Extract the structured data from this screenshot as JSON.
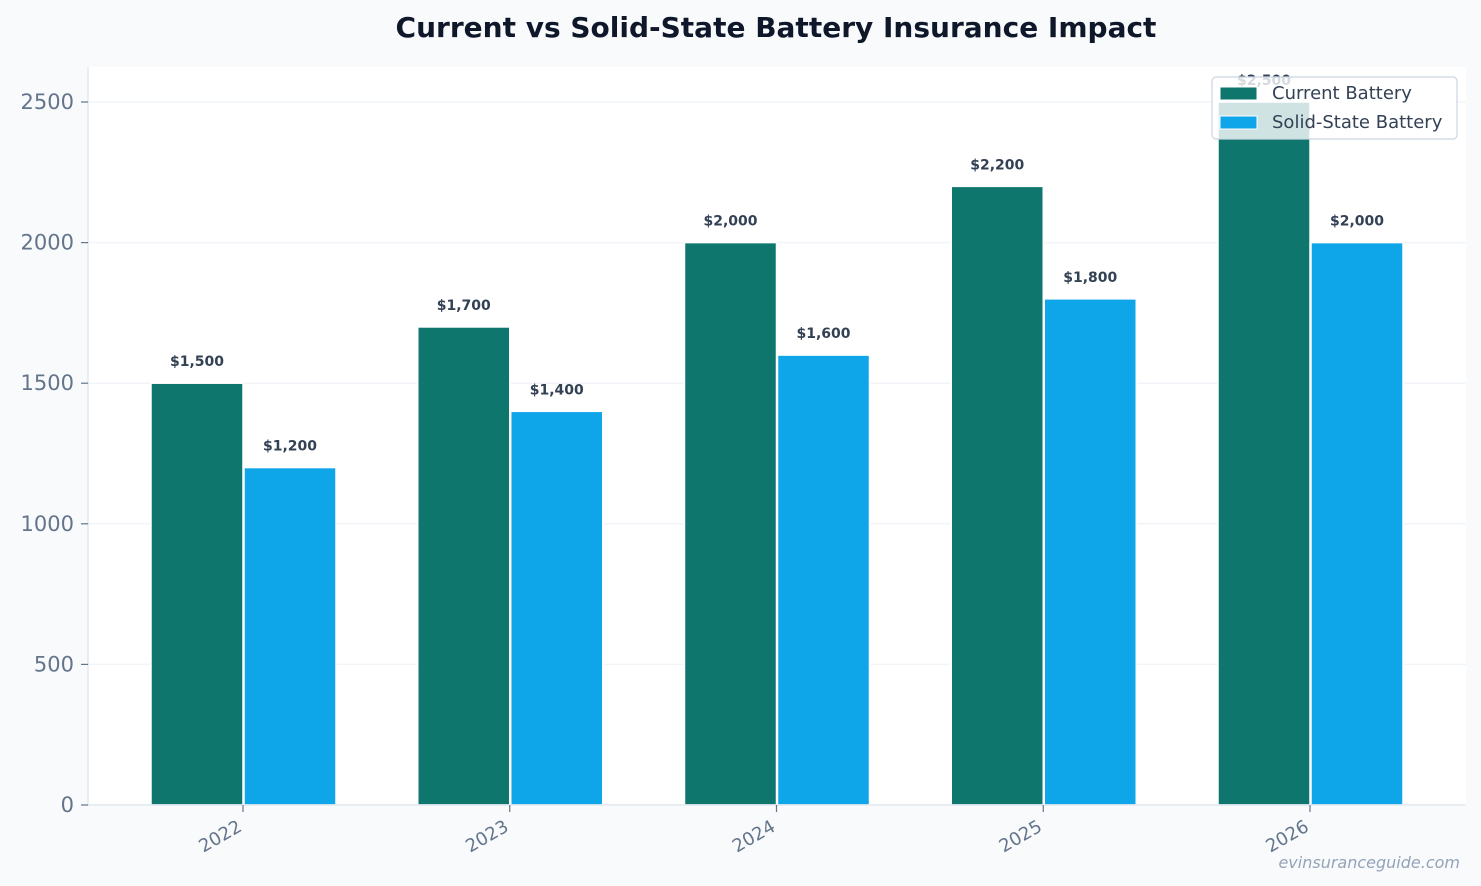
{
  "chart_data": {
    "type": "bar",
    "title": "Current vs Solid-State Battery Insurance Impact",
    "xlabel": "",
    "ylabel": "",
    "categories": [
      "2022",
      "2023",
      "2024",
      "2025",
      "2026"
    ],
    "series": [
      {
        "name": "Current Battery",
        "values": [
          1500,
          1700,
          2000,
          2200,
          2500
        ],
        "labels": [
          "$1,500",
          "$1,700",
          "$2,000",
          "$2,200",
          "$2,500"
        ],
        "color": "#0f766e"
      },
      {
        "name": "Solid-State Battery",
        "values": [
          1200,
          1400,
          1600,
          1800,
          2000
        ],
        "labels": [
          "$1,200",
          "$1,400",
          "$1,600",
          "$1,800",
          "$2,000"
        ],
        "color": "#0ea5e9"
      }
    ],
    "ylim": [
      0,
      2625
    ],
    "yticks": [
      "0",
      "500",
      "1000",
      "1500",
      "2000",
      "2500"
    ],
    "grid": true,
    "legend_position": "top-right"
  },
  "watermark": "evinsuranceguide.com",
  "colors": {
    "background": "#f8fafc",
    "plot_background": "#ffffff",
    "grid": "#f1f5f9",
    "axis": "#e2e8f0",
    "tick_text": "#64748b"
  }
}
